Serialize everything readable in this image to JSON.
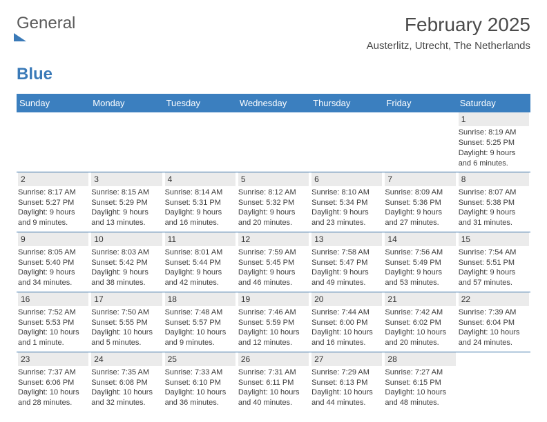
{
  "logo": {
    "word1": "General",
    "word2": "Blue"
  },
  "header": {
    "month_title": "February 2025",
    "location": "Austerlitz, Utrecht, The Netherlands"
  },
  "weekdays": [
    "Sunday",
    "Monday",
    "Tuesday",
    "Wednesday",
    "Thursday",
    "Friday",
    "Saturday"
  ],
  "colors": {
    "header_bg": "#3b7fbf",
    "daynum_bg": "#ebebeb",
    "rule": "#2e6aa3"
  },
  "weeks": [
    [
      null,
      null,
      null,
      null,
      null,
      null,
      {
        "num": "1",
        "sunrise": "Sunrise: 8:19 AM",
        "sunset": "Sunset: 5:25 PM",
        "daylight1": "Daylight: 9 hours",
        "daylight2": "and 6 minutes."
      }
    ],
    [
      {
        "num": "2",
        "sunrise": "Sunrise: 8:17 AM",
        "sunset": "Sunset: 5:27 PM",
        "daylight1": "Daylight: 9 hours",
        "daylight2": "and 9 minutes."
      },
      {
        "num": "3",
        "sunrise": "Sunrise: 8:15 AM",
        "sunset": "Sunset: 5:29 PM",
        "daylight1": "Daylight: 9 hours",
        "daylight2": "and 13 minutes."
      },
      {
        "num": "4",
        "sunrise": "Sunrise: 8:14 AM",
        "sunset": "Sunset: 5:31 PM",
        "daylight1": "Daylight: 9 hours",
        "daylight2": "and 16 minutes."
      },
      {
        "num": "5",
        "sunrise": "Sunrise: 8:12 AM",
        "sunset": "Sunset: 5:32 PM",
        "daylight1": "Daylight: 9 hours",
        "daylight2": "and 20 minutes."
      },
      {
        "num": "6",
        "sunrise": "Sunrise: 8:10 AM",
        "sunset": "Sunset: 5:34 PM",
        "daylight1": "Daylight: 9 hours",
        "daylight2": "and 23 minutes."
      },
      {
        "num": "7",
        "sunrise": "Sunrise: 8:09 AM",
        "sunset": "Sunset: 5:36 PM",
        "daylight1": "Daylight: 9 hours",
        "daylight2": "and 27 minutes."
      },
      {
        "num": "8",
        "sunrise": "Sunrise: 8:07 AM",
        "sunset": "Sunset: 5:38 PM",
        "daylight1": "Daylight: 9 hours",
        "daylight2": "and 31 minutes."
      }
    ],
    [
      {
        "num": "9",
        "sunrise": "Sunrise: 8:05 AM",
        "sunset": "Sunset: 5:40 PM",
        "daylight1": "Daylight: 9 hours",
        "daylight2": "and 34 minutes."
      },
      {
        "num": "10",
        "sunrise": "Sunrise: 8:03 AM",
        "sunset": "Sunset: 5:42 PM",
        "daylight1": "Daylight: 9 hours",
        "daylight2": "and 38 minutes."
      },
      {
        "num": "11",
        "sunrise": "Sunrise: 8:01 AM",
        "sunset": "Sunset: 5:44 PM",
        "daylight1": "Daylight: 9 hours",
        "daylight2": "and 42 minutes."
      },
      {
        "num": "12",
        "sunrise": "Sunrise: 7:59 AM",
        "sunset": "Sunset: 5:45 PM",
        "daylight1": "Daylight: 9 hours",
        "daylight2": "and 46 minutes."
      },
      {
        "num": "13",
        "sunrise": "Sunrise: 7:58 AM",
        "sunset": "Sunset: 5:47 PM",
        "daylight1": "Daylight: 9 hours",
        "daylight2": "and 49 minutes."
      },
      {
        "num": "14",
        "sunrise": "Sunrise: 7:56 AM",
        "sunset": "Sunset: 5:49 PM",
        "daylight1": "Daylight: 9 hours",
        "daylight2": "and 53 minutes."
      },
      {
        "num": "15",
        "sunrise": "Sunrise: 7:54 AM",
        "sunset": "Sunset: 5:51 PM",
        "daylight1": "Daylight: 9 hours",
        "daylight2": "and 57 minutes."
      }
    ],
    [
      {
        "num": "16",
        "sunrise": "Sunrise: 7:52 AM",
        "sunset": "Sunset: 5:53 PM",
        "daylight1": "Daylight: 10 hours",
        "daylight2": "and 1 minute."
      },
      {
        "num": "17",
        "sunrise": "Sunrise: 7:50 AM",
        "sunset": "Sunset: 5:55 PM",
        "daylight1": "Daylight: 10 hours",
        "daylight2": "and 5 minutes."
      },
      {
        "num": "18",
        "sunrise": "Sunrise: 7:48 AM",
        "sunset": "Sunset: 5:57 PM",
        "daylight1": "Daylight: 10 hours",
        "daylight2": "and 9 minutes."
      },
      {
        "num": "19",
        "sunrise": "Sunrise: 7:46 AM",
        "sunset": "Sunset: 5:59 PM",
        "daylight1": "Daylight: 10 hours",
        "daylight2": "and 12 minutes."
      },
      {
        "num": "20",
        "sunrise": "Sunrise: 7:44 AM",
        "sunset": "Sunset: 6:00 PM",
        "daylight1": "Daylight: 10 hours",
        "daylight2": "and 16 minutes."
      },
      {
        "num": "21",
        "sunrise": "Sunrise: 7:42 AM",
        "sunset": "Sunset: 6:02 PM",
        "daylight1": "Daylight: 10 hours",
        "daylight2": "and 20 minutes."
      },
      {
        "num": "22",
        "sunrise": "Sunrise: 7:39 AM",
        "sunset": "Sunset: 6:04 PM",
        "daylight1": "Daylight: 10 hours",
        "daylight2": "and 24 minutes."
      }
    ],
    [
      {
        "num": "23",
        "sunrise": "Sunrise: 7:37 AM",
        "sunset": "Sunset: 6:06 PM",
        "daylight1": "Daylight: 10 hours",
        "daylight2": "and 28 minutes."
      },
      {
        "num": "24",
        "sunrise": "Sunrise: 7:35 AM",
        "sunset": "Sunset: 6:08 PM",
        "daylight1": "Daylight: 10 hours",
        "daylight2": "and 32 minutes."
      },
      {
        "num": "25",
        "sunrise": "Sunrise: 7:33 AM",
        "sunset": "Sunset: 6:10 PM",
        "daylight1": "Daylight: 10 hours",
        "daylight2": "and 36 minutes."
      },
      {
        "num": "26",
        "sunrise": "Sunrise: 7:31 AM",
        "sunset": "Sunset: 6:11 PM",
        "daylight1": "Daylight: 10 hours",
        "daylight2": "and 40 minutes."
      },
      {
        "num": "27",
        "sunrise": "Sunrise: 7:29 AM",
        "sunset": "Sunset: 6:13 PM",
        "daylight1": "Daylight: 10 hours",
        "daylight2": "and 44 minutes."
      },
      {
        "num": "28",
        "sunrise": "Sunrise: 7:27 AM",
        "sunset": "Sunset: 6:15 PM",
        "daylight1": "Daylight: 10 hours",
        "daylight2": "and 48 minutes."
      },
      null
    ]
  ]
}
